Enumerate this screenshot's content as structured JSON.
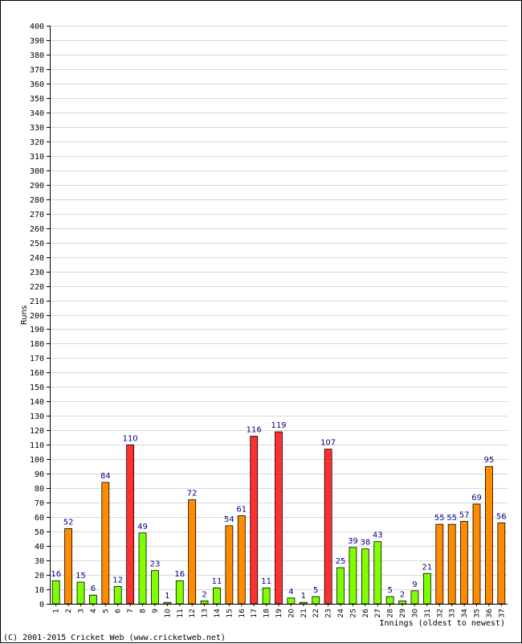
{
  "chart_data": {
    "type": "bar",
    "ylabel": "Runs",
    "xlabel": "Innings (oldest to newest)",
    "ylim": [
      0,
      400
    ],
    "ytick_step": 10,
    "grid": true,
    "categories": [
      "1",
      "2",
      "3",
      "4",
      "5",
      "6",
      "7",
      "8",
      "9",
      "10",
      "11",
      "12",
      "13",
      "14",
      "15",
      "16",
      "17",
      "18",
      "19",
      "20",
      "21",
      "22",
      "23",
      "24",
      "25",
      "26",
      "27",
      "28",
      "29",
      "30",
      "31",
      "32",
      "33",
      "34",
      "35",
      "36",
      "37"
    ],
    "values": [
      16,
      52,
      15,
      6,
      84,
      12,
      110,
      49,
      23,
      1,
      16,
      72,
      2,
      11,
      54,
      61,
      116,
      11,
      119,
      4,
      1,
      5,
      107,
      25,
      39,
      38,
      43,
      5,
      2,
      9,
      21,
      55,
      55,
      57,
      69,
      95,
      56
    ],
    "colors": {
      "low": "#7fff00",
      "fifty": "#ff8c00",
      "hundred": "#ff3030",
      "label": "#000080",
      "grid": "#d8d8d8"
    }
  },
  "footer": {
    "copyright": "(C) 2001-2015 Cricket Web (www.cricketweb.net)"
  }
}
